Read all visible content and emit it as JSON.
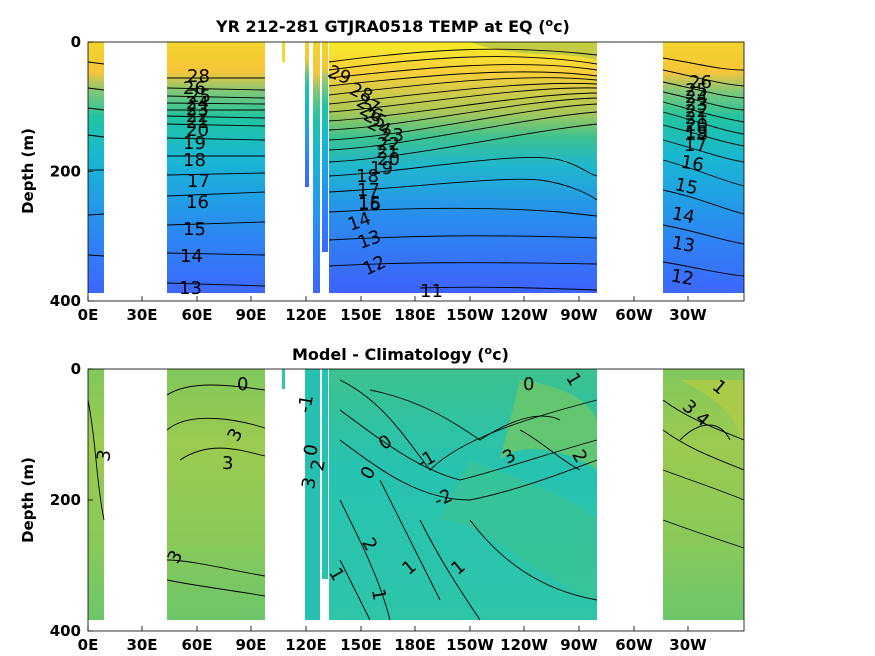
{
  "chart_data": [
    {
      "type": "contour",
      "title": "YR 212-281 GTJRA0518 TEMP at EQ (°c)",
      "title_main": "YR 212-281 GTJRA0518 TEMP at EQ (",
      "title_unit_o": "o",
      "title_unit_c": "c)",
      "ylabel": "Depth (m)",
      "ylim": [
        400,
        0
      ],
      "y_ticks": [
        "0",
        "200",
        "400"
      ],
      "x_ticks": [
        "0E",
        "30E",
        "60E",
        "90E",
        "120E",
        "150E",
        "180E",
        "150W",
        "120W",
        "90W",
        "60W",
        "30W"
      ],
      "land_gaps_lon": [
        [
          8,
          43
        ],
        [
          97,
          125
        ],
        [
          130,
          133
        ],
        [
          265,
          305
        ]
      ],
      "contour_levels": [
        11,
        12,
        13,
        14,
        15,
        16,
        17,
        18,
        19,
        20,
        21,
        22,
        23,
        24,
        25,
        26,
        27,
        28,
        29
      ],
      "contour_labels": [
        "28",
        "26",
        "25",
        "24",
        "23",
        "22",
        "21",
        "20",
        "19",
        "18",
        "17",
        "16",
        "15",
        "14",
        "13",
        "29",
        "28",
        "27",
        "26",
        "25",
        "24",
        "23",
        "22",
        "21",
        "20",
        "19",
        "18",
        "17",
        "16",
        "15",
        "14",
        "13",
        "12",
        "11",
        "26",
        "25",
        "24",
        "23",
        "22",
        "21",
        "20",
        "19",
        "18",
        "17",
        "16",
        "15",
        "14",
        "13",
        "12"
      ]
    },
    {
      "type": "contour",
      "title": "Model - Climatology (°c)",
      "title_main": "Model - Climatology (",
      "title_unit_o": "o",
      "title_unit_c": "c)",
      "ylabel": "Depth (m)",
      "ylim": [
        400,
        0
      ],
      "y_ticks": [
        "0",
        "200",
        "400"
      ],
      "x_ticks": [
        "0E",
        "30E",
        "60E",
        "90E",
        "120E",
        "150E",
        "180E",
        "150W",
        "120W",
        "90W",
        "60W",
        "30W"
      ],
      "land_gaps_lon": [
        [
          8,
          43
        ],
        [
          97,
          125
        ],
        [
          130,
          133
        ],
        [
          265,
          305
        ]
      ],
      "contour_levels": [
        -2,
        -1,
        0,
        1,
        2,
        3,
        4
      ],
      "contour_labels": [
        "3",
        "0",
        "3",
        "3",
        "3",
        "-1",
        "0",
        "3",
        "2",
        "0",
        "0",
        "-1",
        "0",
        "-2",
        "3",
        "2",
        "1",
        "2",
        "1",
        "1",
        "1",
        "1",
        "3",
        "4",
        "1"
      ]
    }
  ]
}
